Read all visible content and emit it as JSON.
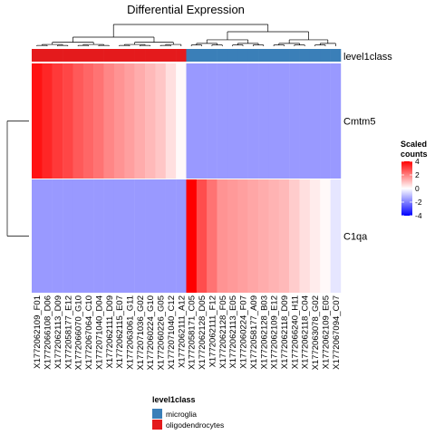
{
  "chart_data": {
    "type": "heatmap",
    "title": "Differential Expression",
    "rows": [
      "Cmtm5",
      "C1qa"
    ],
    "columns": [
      "X1772062109_F01",
      "X1772066108_D06",
      "X1772062113_D09",
      "X1772058177_E12",
      "X1772066070_G10",
      "X1772067064_C10",
      "X1772071040_D04",
      "X1772062111_D09",
      "X1772062115_E07",
      "X1772063061_G11",
      "X1772071036_G02",
      "X1772060224_G10",
      "X1772060226_G05",
      "X1772071040_C12",
      "X1772062111_A12",
      "X1772058171_C05",
      "X1772062128_D05",
      "X1772062111_F12",
      "X1772062128_F05",
      "X1772062113_E05",
      "X1772060224_F07",
      "X1772058177_A09",
      "X1772062128_B03",
      "X1772062109_E12",
      "X1772062118_D09",
      "X1772066240_H11",
      "X1772062118_C04",
      "X1772063078_G02",
      "X1772062109_E05",
      "X1772067094_C07"
    ],
    "values": [
      [
        3.7,
        3.4,
        3.1,
        2.9,
        2.6,
        2.4,
        2.2,
        1.9,
        1.7,
        1.5,
        1.3,
        1.1,
        0.9,
        0.5,
        0.1,
        -1.6,
        -1.6,
        -1.6,
        -1.6,
        -1.6,
        -1.6,
        -1.6,
        -1.6,
        -1.6,
        -1.6,
        -1.6,
        -1.6,
        -1.6,
        -1.6,
        -1.6
      ],
      [
        -1.6,
        -1.6,
        -1.6,
        -1.6,
        -1.6,
        -1.6,
        -1.6,
        -1.6,
        -1.6,
        -1.6,
        -1.6,
        -1.6,
        -1.6,
        -1.6,
        -1.6,
        4.0,
        2.8,
        2.2,
        1.7,
        1.6,
        1.5,
        1.4,
        1.3,
        1.2,
        1.1,
        0.8,
        0.5,
        0.3,
        0.1,
        -0.4
      ]
    ],
    "column_group_order": [
      1,
      1,
      1,
      1,
      1,
      1,
      1,
      1,
      1,
      1,
      1,
      1,
      1,
      1,
      1,
      0,
      0,
      0,
      0,
      0,
      0,
      0,
      0,
      0,
      0,
      0,
      0,
      0,
      0,
      0
    ],
    "annotation": {
      "name": "level1class",
      "legend_title": "level1class",
      "categories": [
        "microglia",
        "oligodendrocytes"
      ],
      "colors": [
        "#3a7fb8",
        "#e41a1c"
      ]
    },
    "color_scale": {
      "title": "Scaled counts",
      "ticks": [
        4,
        2,
        0,
        -2,
        -4
      ],
      "range": [
        -4,
        4
      ],
      "low": "#0000ff",
      "mid": "#ffffff",
      "high": "#ff0000"
    }
  }
}
